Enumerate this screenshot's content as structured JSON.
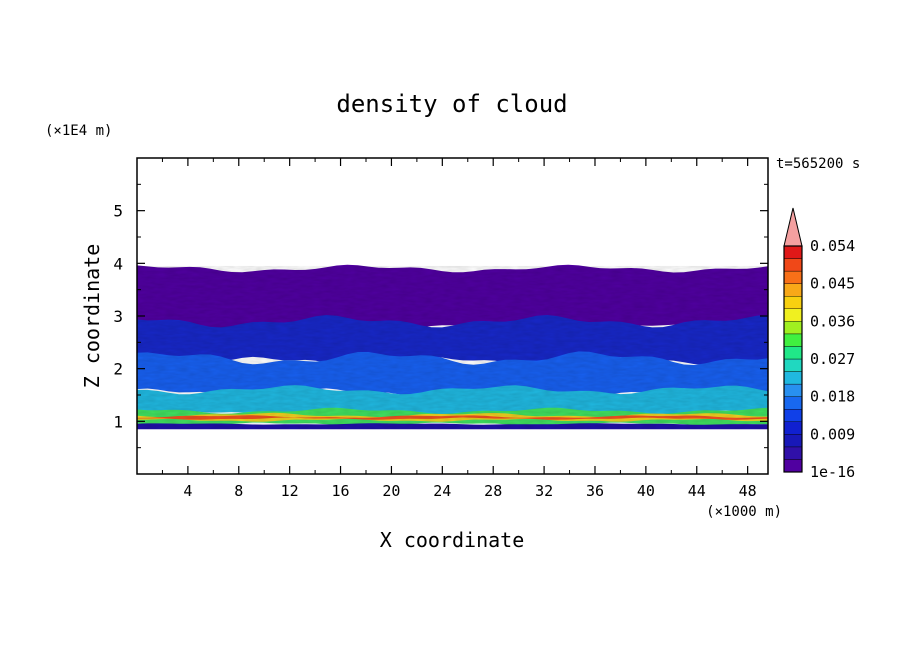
{
  "chart_data": {
    "type": "heatmap",
    "title": "density of cloud",
    "xlabel": "X coordinate",
    "ylabel": "Z coordinate",
    "x_unit": "(×1000 m)",
    "y_unit": "(×1E4 m)",
    "time_label": "t=565200 s",
    "xlim": [
      0,
      49.6
    ],
    "ylim": [
      0,
      6
    ],
    "x_ticks": [
      4,
      8,
      12,
      16,
      20,
      24,
      28,
      32,
      36,
      40,
      44,
      48
    ],
    "y_ticks": [
      1,
      2,
      3,
      4,
      5
    ],
    "colorbar": {
      "labels": [
        "1e-16",
        "0.009",
        "0.018",
        "0.027",
        "0.036",
        "0.045",
        "0.054"
      ],
      "colors": [
        "#5000a0",
        "#3010a8",
        "#1818b8",
        "#1020d0",
        "#1040e8",
        "#1868f0",
        "#2890f0",
        "#20b8e0",
        "#20d8c0",
        "#20e888",
        "#40f040",
        "#a0f020",
        "#f0f020",
        "#f8d010",
        "#f8a818",
        "#f87018",
        "#f04818",
        "#e01818"
      ],
      "extend_color": "#f4a0a0"
    },
    "layers": [
      {
        "z_range": [
          0.85,
          0.95
        ],
        "color": "#2010a8"
      },
      {
        "z_range": [
          0.95,
          1.2
        ],
        "color": "#40e060",
        "note_peak_color": "#f05020"
      },
      {
        "z_range": [
          1.2,
          1.6
        ],
        "color": "#20b8e0"
      },
      {
        "z_range": [
          1.6,
          2.2
        ],
        "color": "#1860f0"
      },
      {
        "z_range": [
          2.2,
          2.9
        ],
        "color": "#1828c8"
      },
      {
        "z_range": [
          2.9,
          3.9
        ],
        "color": "#5000a0"
      }
    ]
  }
}
